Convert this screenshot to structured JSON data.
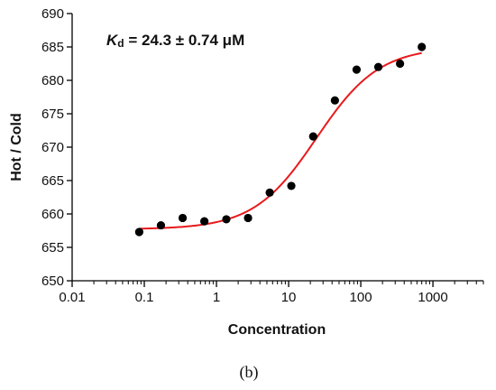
{
  "chart_data": {
    "type": "scatter",
    "x_scale": "log",
    "xlabel": "Concentration",
    "ylabel": "Hot / Cold",
    "xlim": [
      0.01,
      5000
    ],
    "ylim": [
      650,
      690
    ],
    "x_ticks": [
      0.01,
      0.1,
      1,
      10,
      100,
      1000
    ],
    "x_tick_labels": [
      "0.01",
      "0.1",
      "1",
      "10",
      "100",
      "1000"
    ],
    "y_ticks": [
      650,
      655,
      660,
      665,
      670,
      675,
      680,
      685,
      690
    ],
    "y_tick_labels": [
      "650",
      "655",
      "660",
      "665",
      "670",
      "675",
      "680",
      "685",
      "690"
    ],
    "annotation": {
      "kd_symbol": "K",
      "kd_subscript": "d",
      "kd_value": " = 24.3 ± 0.74 μM"
    },
    "panel_label": "(b)",
    "grid": false,
    "point_color": "#000000",
    "fit_color": "#e8191c",
    "points": [
      {
        "x": 0.085,
        "y": 657.3
      },
      {
        "x": 0.17,
        "y": 658.3
      },
      {
        "x": 0.34,
        "y": 659.4
      },
      {
        "x": 0.68,
        "y": 658.9
      },
      {
        "x": 1.37,
        "y": 659.2
      },
      {
        "x": 2.74,
        "y": 659.4
      },
      {
        "x": 5.47,
        "y": 663.2
      },
      {
        "x": 10.9,
        "y": 664.2
      },
      {
        "x": 21.9,
        "y": 671.6
      },
      {
        "x": 43.8,
        "y": 677.0
      },
      {
        "x": 87.5,
        "y": 681.6
      },
      {
        "x": 175,
        "y": 682.0
      },
      {
        "x": 350,
        "y": 682.5
      },
      {
        "x": 700,
        "y": 685.0
      }
    ],
    "fit": {
      "model": "binding",
      "kd": 24.3,
      "bottom": 657.7,
      "top": 685.0
    }
  }
}
